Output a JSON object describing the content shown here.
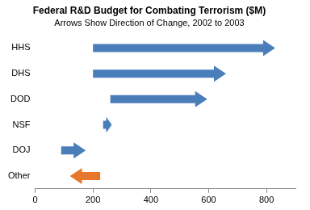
{
  "chart_data": {
    "type": "arrow",
    "title": "Federal R&D Budget for Combating Terrorism ($M)",
    "subtitle": "Arrows Show Direction of Change, 2002 to 2003",
    "orientation": "horizontal",
    "categories": [
      "HHS",
      "DHS",
      "DOD",
      "NSF",
      "DOJ",
      "Other"
    ],
    "values": [
      [
        200,
        830
      ],
      [
        200,
        660
      ],
      [
        260,
        595
      ],
      [
        235,
        265
      ],
      [
        90,
        175
      ],
      [
        225,
        120
      ]
    ],
    "colors": [
      "#4a7ebb",
      "#4a7ebb",
      "#4a7ebb",
      "#4a7ebb",
      "#4a7ebb",
      "#e8772e"
    ],
    "xlim": [
      0,
      900
    ],
    "xticks": [
      0,
      200,
      400,
      600,
      800
    ],
    "grid": false
  }
}
